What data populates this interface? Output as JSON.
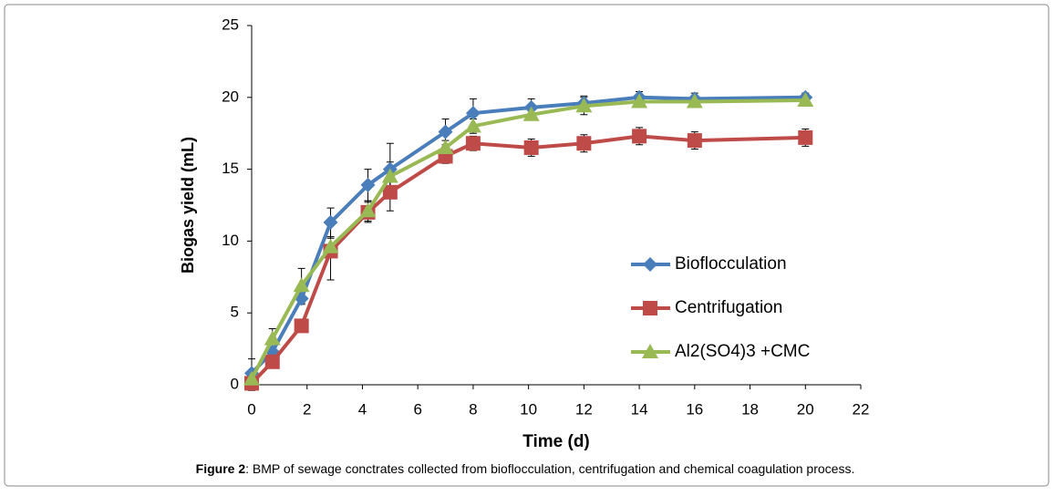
{
  "chart_data": {
    "type": "line",
    "x_label": "Time (d)",
    "y_label": "Biogas yield (mL)",
    "x": [
      0,
      0.75,
      1.8,
      2.85,
      4.2,
      5,
      7,
      8,
      10.1,
      12,
      14,
      16,
      20
    ],
    "xlim": [
      0,
      22
    ],
    "xticks": [
      0,
      2,
      4,
      6,
      8,
      10,
      12,
      14,
      16,
      18,
      20,
      22
    ],
    "ylim": [
      0,
      25
    ],
    "yticks": [
      0,
      5,
      10,
      15,
      20,
      25
    ],
    "grid": false,
    "series": [
      {
        "name": "Bioflocculation",
        "color": "#4a7ebb",
        "marker": "diamond",
        "values": [
          0.8,
          2.3,
          6.0,
          11.3,
          13.9,
          15.0,
          17.6,
          18.9,
          19.3,
          19.6,
          20.0,
          19.9,
          20.0
        ],
        "errors": [
          1.0,
          0.5,
          0.4,
          1.0,
          1.1,
          1.8,
          0.9,
          1.0,
          0.6,
          0.5,
          0.4,
          0.4,
          0.3
        ]
      },
      {
        "name": "Centrifugation",
        "color": "#be4b48",
        "marker": "square",
        "values": [
          0.1,
          1.6,
          4.1,
          9.3,
          12.0,
          13.4,
          15.9,
          16.8,
          16.5,
          16.8,
          17.3,
          17.0,
          17.2
        ],
        "errors": [
          0.5,
          0.4,
          0.4,
          2.0,
          0.7,
          1.3,
          0.5,
          0.5,
          0.6,
          0.6,
          0.6,
          0.6,
          0.6
        ]
      },
      {
        "name": "Al2(SO4)3 +CMC",
        "color": "#98b954",
        "marker": "triangle",
        "values": [
          0.4,
          3.2,
          6.9,
          9.6,
          12.1,
          14.5,
          16.5,
          18.0,
          18.8,
          19.4,
          19.7,
          19.7,
          19.8
        ],
        "errors": [
          0.5,
          0.7,
          1.2,
          0.6,
          0.7,
          1.0,
          0.5,
          0.5,
          0.4,
          0.6,
          0.3,
          0.3,
          0.3
        ]
      }
    ],
    "caption_label": "Figure 2",
    "caption_text": ": BMP of sewage conctrates collected from bioflocculation, centrifugation and chemical coagulation process."
  }
}
